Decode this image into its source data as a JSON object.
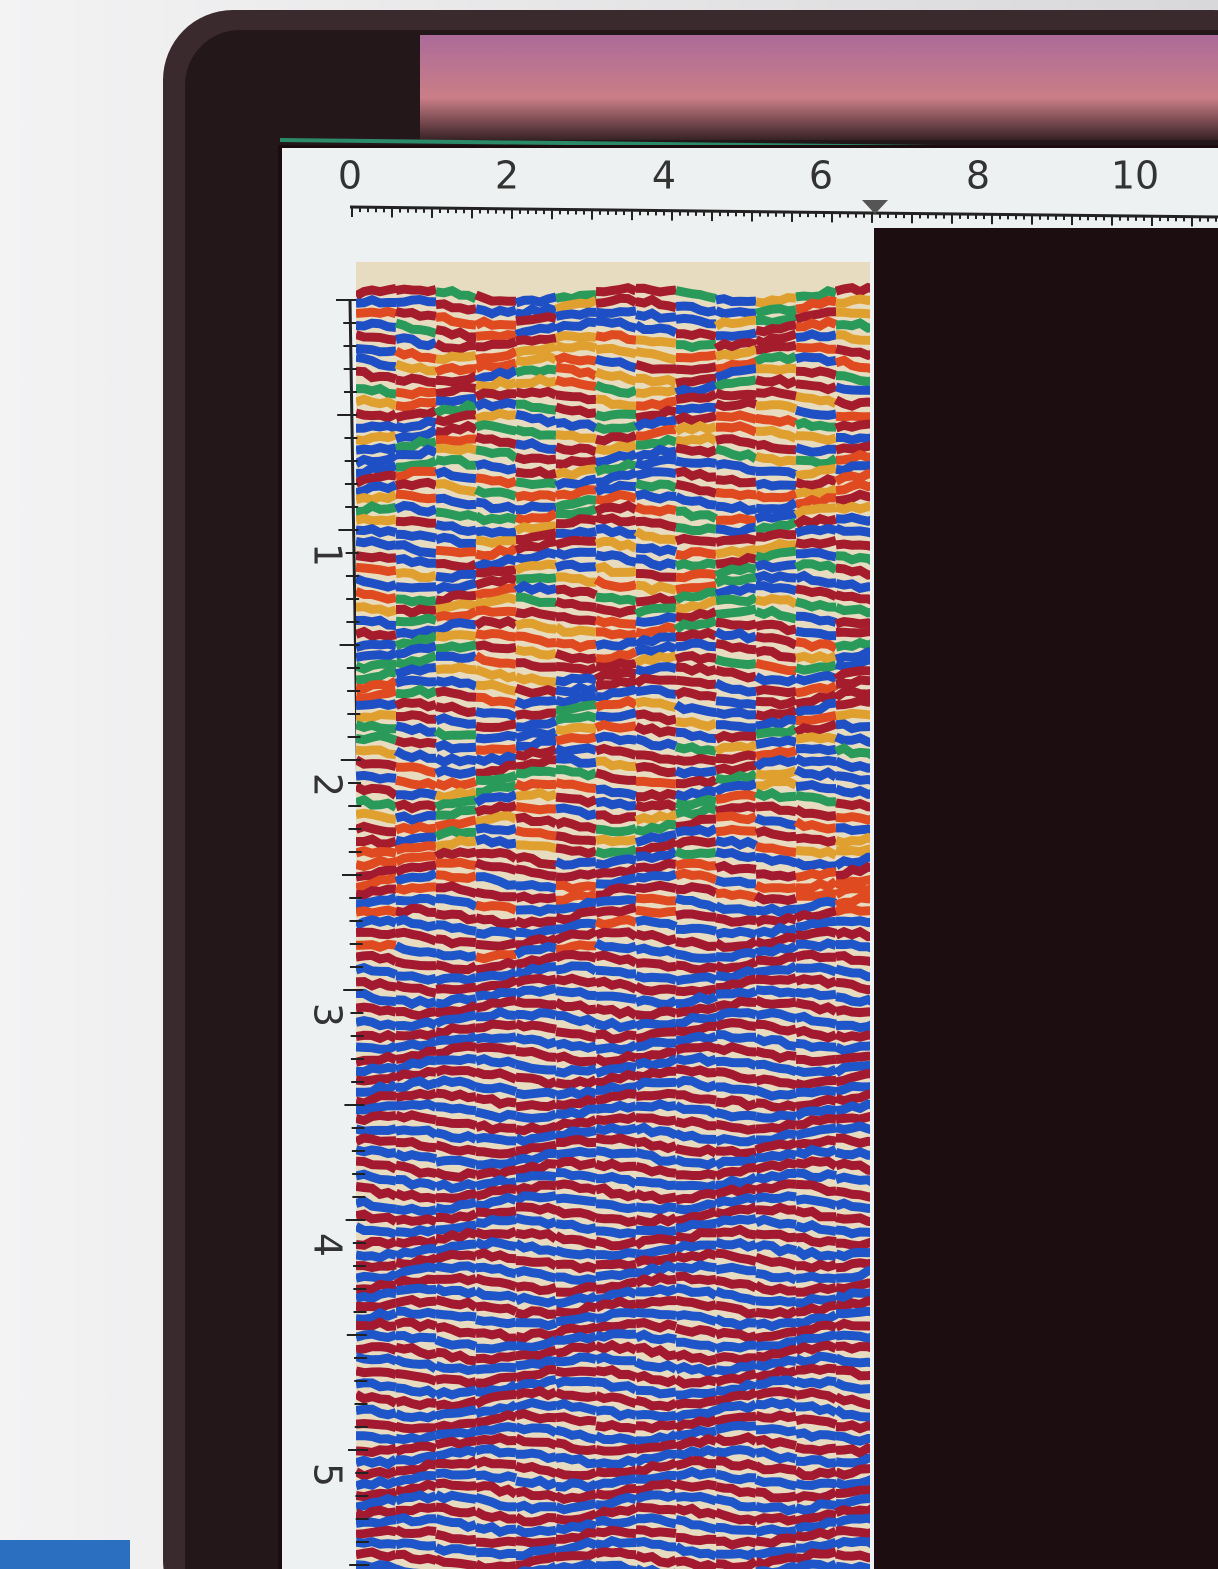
{
  "screen": {
    "top_ruler": {
      "labels": [
        "0",
        "2",
        "4",
        "6",
        "8",
        "10"
      ]
    },
    "left_ruler": {
      "labels": [
        "1",
        "2",
        "3",
        "4",
        "5"
      ]
    }
  }
}
